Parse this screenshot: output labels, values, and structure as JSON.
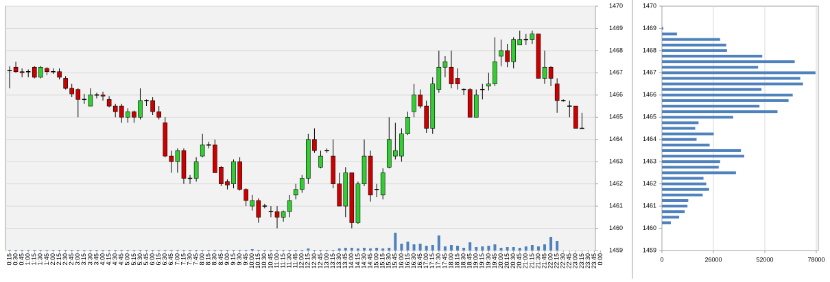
{
  "chart_data": [
    {
      "type": "candlestick",
      "categories": [
        "0:15",
        "0:30",
        "0:45",
        "1:00",
        "1:15",
        "1:30",
        "1:45",
        "2:00",
        "2:15",
        "2:30",
        "2:45",
        "3:00",
        "3:15",
        "3:30",
        "3:45",
        "4:00",
        "4:15",
        "4:30",
        "4:45",
        "5:00",
        "5:15",
        "5:30",
        "5:45",
        "6:00",
        "6:15",
        "6:30",
        "6:45",
        "7:00",
        "7:15",
        "7:30",
        "7:45",
        "8:00",
        "8:15",
        "8:30",
        "8:45",
        "9:00",
        "9:15",
        "9:30",
        "9:45",
        "10:00",
        "10:15",
        "10:30",
        "10:45",
        "11:00",
        "11:15",
        "11:30",
        "11:45",
        "12:00",
        "12:15",
        "12:30",
        "12:45",
        "13:00",
        "13:15",
        "13:30",
        "13:45",
        "14:00",
        "14:15",
        "14:30",
        "14:45",
        "15:00",
        "15:15",
        "15:30",
        "15:45",
        "16:00",
        "16:15",
        "16:30",
        "16:45",
        "17:00",
        "17:15",
        "17:30",
        "17:45",
        "18:00",
        "18:15",
        "18:30",
        "18:45",
        "19:00",
        "19:15",
        "19:30",
        "19:45",
        "20:00",
        "20:15",
        "20:30",
        "20:45",
        "21:00",
        "21:15",
        "21:30",
        "21:45",
        "22:00",
        "22:15",
        "22:30",
        "22:45",
        "23:00",
        "23:15",
        "23:30",
        "23:45",
        "0:00"
      ],
      "open": [
        1467.1,
        1467.25,
        1467.05,
        1467.05,
        1467.25,
        1466.8,
        1467.2,
        1467.05,
        1467.05,
        1466.75,
        1466.3,
        1466.25,
        1465.8,
        1465.5,
        1466.0,
        1466.0,
        1465.8,
        1465.5,
        1465.5,
        1465.0,
        1465.25,
        1465.0,
        1465.75,
        1465.75,
        1465.25,
        1464.75,
        1463.25,
        1463.0,
        1463.5,
        1462.25,
        1462.25,
        1463.25,
        1463.75,
        1463.75,
        1462.75,
        1462.1,
        1462.0,
        1463.0,
        1461.75,
        1461.0,
        1461.25,
        1461.0,
        1460.75,
        1460.75,
        1460.5,
        1460.75,
        1461.5,
        1461.75,
        1462.25,
        1464.0,
        1462.75,
        1463.5,
        1463.25,
        1462.0,
        1461.0,
        1462.5,
        1460.25,
        1462.0,
        1463.25,
        1461.75,
        1461.5,
        1462.75,
        1463.25,
        1463.25,
        1464.25,
        1465.25,
        1466.0,
        1465.5,
        1464.5,
        1466.25,
        1467.25,
        1467.25,
        1466.75,
        1466.25,
        1466.25,
        1465.0,
        1466.25,
        1466.4,
        1466.5,
        1467.75,
        1468.0,
        1467.5,
        1468.25,
        1468.5,
        1468.5,
        1468.75,
        1466.75,
        1467.25,
        1466.5,
        1465.75,
        1465.5,
        1465.5,
        1464.5,
        null,
        null,
        null
      ],
      "high": [
        1467.3,
        1467.5,
        1467.2,
        1467.15,
        1467.3,
        1467.3,
        1467.25,
        1467.2,
        1467.2,
        1466.85,
        1466.5,
        1466.3,
        1466.05,
        1466.3,
        1466.1,
        1466.15,
        1465.95,
        1465.6,
        1465.6,
        1465.4,
        1465.3,
        1466.3,
        1465.8,
        1465.9,
        1465.5,
        1465.0,
        1463.5,
        1463.6,
        1463.6,
        1462.4,
        1463.2,
        1464.25,
        1463.9,
        1464.0,
        1462.8,
        1462.2,
        1463.1,
        1463.2,
        1461.8,
        1461.5,
        1461.35,
        1461.1,
        1461.0,
        1461.0,
        1460.8,
        1461.5,
        1462.0,
        1462.4,
        1464.25,
        1464.5,
        1463.5,
        1463.6,
        1464.0,
        1462.5,
        1462.75,
        1462.5,
        1462.1,
        1464.0,
        1463.5,
        1462.0,
        1462.7,
        1465.0,
        1464.75,
        1464.5,
        1465.25,
        1466.5,
        1466.25,
        1465.75,
        1466.8,
        1468.0,
        1467.75,
        1468.0,
        1467.2,
        1466.3,
        1466.3,
        1466.25,
        1466.5,
        1467.0,
        1468.6,
        1468.5,
        1468.3,
        1468.6,
        1468.9,
        1468.75,
        1468.9,
        1468.75,
        1468.0,
        1467.3,
        1466.75,
        1465.8,
        1465.75,
        1465.5,
        1465.2,
        null,
        null,
        null
      ],
      "low": [
        1466.3,
        1467.0,
        1466.8,
        1466.8,
        1466.75,
        1466.75,
        1466.9,
        1466.95,
        1466.7,
        1466.25,
        1465.9,
        1465.0,
        1465.6,
        1465.5,
        1465.85,
        1465.75,
        1465.45,
        1465.0,
        1464.75,
        1464.75,
        1464.75,
        1464.9,
        1465.5,
        1465.1,
        1464.9,
        1463.2,
        1462.5,
        1462.5,
        1462.0,
        1462.0,
        1462.1,
        1463.2,
        1463.6,
        1462.5,
        1461.9,
        1461.75,
        1461.8,
        1461.7,
        1461.0,
        1460.8,
        1460.25,
        1460.9,
        1460.5,
        1460.0,
        1460.3,
        1460.5,
        1461.3,
        1461.6,
        1462.0,
        1463.4,
        1462.7,
        1463.4,
        1461.8,
        1461.0,
        1460.5,
        1460.0,
        1460.2,
        1461.9,
        1461.2,
        1461.4,
        1461.3,
        1462.7,
        1463.1,
        1463.0,
        1464.2,
        1465.0,
        1465.4,
        1464.3,
        1464.25,
        1466.1,
        1466.8,
        1466.3,
        1466.25,
        1466.0,
        1465.0,
        1465.0,
        1465.8,
        1466.2,
        1466.4,
        1467.3,
        1467.25,
        1467.2,
        1468.25,
        1468.25,
        1468.3,
        1466.75,
        1466.5,
        1466.4,
        1465.2,
        1465.7,
        1465.0,
        1464.5,
        1464.5,
        null,
        null,
        null
      ],
      "close": [
        1467.1,
        1467.05,
        1467.0,
        1467.05,
        1466.8,
        1467.25,
        1467.05,
        1467.05,
        1466.8,
        1466.3,
        1466.05,
        1465.8,
        1465.8,
        1466.0,
        1466.0,
        1465.95,
        1465.5,
        1465.25,
        1465.0,
        1465.25,
        1465.0,
        1465.75,
        1465.75,
        1465.25,
        1465.0,
        1463.25,
        1463.0,
        1463.5,
        1462.25,
        1462.25,
        1463.0,
        1463.75,
        1463.75,
        1462.5,
        1462.0,
        1461.95,
        1463.0,
        1461.75,
        1461.25,
        1461.25,
        1460.5,
        1461.0,
        1460.75,
        1460.5,
        1460.75,
        1461.25,
        1461.75,
        1462.25,
        1464.0,
        1463.5,
        1463.25,
        1463.5,
        1462.0,
        1461.0,
        1462.5,
        1460.25,
        1462.0,
        1463.25,
        1461.5,
        1461.75,
        1462.5,
        1464.0,
        1463.5,
        1464.25,
        1465.0,
        1466.0,
        1465.5,
        1464.5,
        1466.5,
        1467.25,
        1467.5,
        1466.5,
        1466.5,
        1466.25,
        1465.0,
        1466.0,
        1466.25,
        1466.5,
        1467.5,
        1468.0,
        1467.5,
        1468.5,
        1468.5,
        1468.5,
        1468.75,
        1466.75,
        1467.25,
        1466.75,
        1465.75,
        1465.75,
        1465.5,
        1464.5,
        1464.5,
        null,
        null,
        null
      ],
      "volume": [
        1,
        1,
        1,
        1,
        1,
        1,
        1,
        1,
        1,
        1,
        1,
        1,
        1,
        1,
        1,
        1,
        1,
        1,
        1,
        1,
        1,
        1,
        1,
        1,
        1,
        1,
        1,
        1,
        1,
        1,
        1,
        1,
        1,
        1,
        1,
        1,
        1,
        1,
        1,
        2,
        1,
        1,
        1,
        1,
        1,
        1,
        1,
        1,
        3,
        1,
        1,
        1,
        1,
        3,
        4,
        4,
        3,
        4,
        3,
        4,
        3,
        4,
        26,
        10,
        13,
        9,
        10,
        7,
        8,
        22,
        6,
        8,
        7,
        4,
        12,
        5,
        6,
        7,
        9,
        4,
        5,
        5,
        4,
        6,
        8,
        6,
        9,
        20,
        14,
        0,
        0,
        0,
        0,
        null,
        null,
        null
      ],
      "up_color": "#33cc33",
      "down_color": "#cc0000",
      "volume_color": "#4f81bd",
      "ylim": [
        1459,
        1470
      ],
      "yticks": [
        1459,
        1460,
        1461,
        1462,
        1463,
        1464,
        1465,
        1466,
        1467,
        1468,
        1469,
        1470
      ],
      "grid": true
    },
    {
      "type": "barh",
      "y": [
        1469,
        1468.75,
        1468.5,
        1468.25,
        1468,
        1467.75,
        1467.5,
        1467.25,
        1467,
        1466.75,
        1466.5,
        1466.25,
        1466,
        1465.75,
        1465.5,
        1465.25,
        1465,
        1464.75,
        1464.5,
        1464.25,
        1464,
        1463.75,
        1463.5,
        1463.25,
        1463,
        1462.75,
        1462.5,
        1462.25,
        1462,
        1461.75,
        1461.5,
        1461.25,
        1461,
        1460.75,
        1460.5,
        1460.25
      ],
      "values": [
        700,
        7600,
        29400,
        32500,
        32900,
        50700,
        67100,
        48600,
        77600,
        69900,
        71300,
        50300,
        66100,
        64000,
        49300,
        58400,
        36000,
        18500,
        16800,
        26200,
        17500,
        24100,
        39900,
        41600,
        29400,
        28700,
        37400,
        21000,
        22400,
        23800,
        20600,
        13300,
        12900,
        11500,
        8700,
        4500
      ],
      "color": "#4f81bd",
      "ylim": [
        1459,
        1470
      ],
      "yticks": [
        1459,
        1460,
        1461,
        1462,
        1463,
        1464,
        1465,
        1466,
        1467,
        1468,
        1469,
        1470
      ],
      "xlim": [
        0,
        78000
      ],
      "xticks": [
        0,
        26000,
        52000,
        78000
      ],
      "grid": true
    }
  ]
}
